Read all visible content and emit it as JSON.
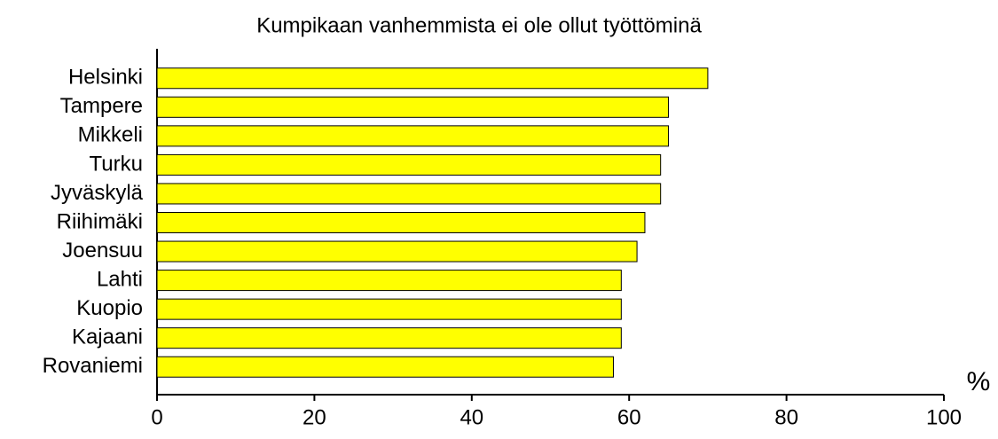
{
  "chart_data": {
    "type": "bar",
    "orientation": "horizontal",
    "title": "Kumpikaan vanhemmista ei ole ollut työttöminä",
    "xlabel": "%",
    "categories": [
      "Helsinki",
      "Tampere",
      "Mikkeli",
      "Turku",
      "Jyväskylä",
      "Riihimäki",
      "Joensuu",
      "Lahti",
      "Kuopio",
      "Kajaani",
      "Rovaniemi"
    ],
    "values": [
      70,
      65,
      65,
      64,
      64,
      62,
      61,
      59,
      59,
      59,
      58
    ],
    "color": "#ffff00",
    "xlim": [
      0,
      100
    ],
    "xticks": [
      0,
      20,
      40,
      60,
      80,
      100
    ],
    "grid": false
  }
}
